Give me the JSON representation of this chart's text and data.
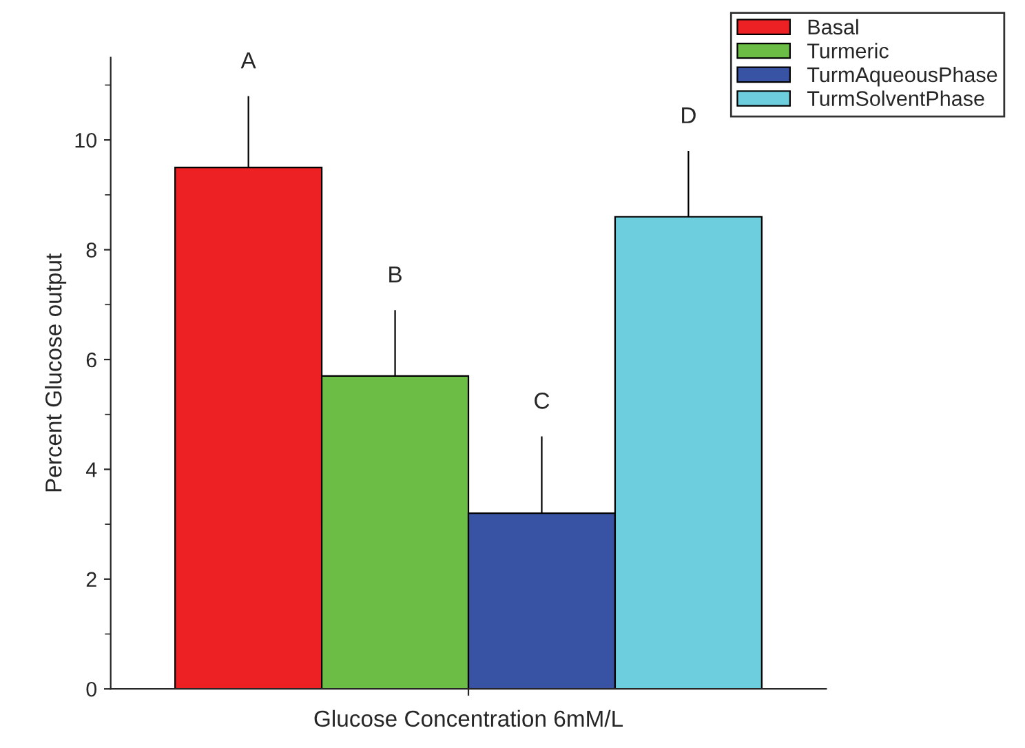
{
  "chart_data": {
    "type": "bar",
    "xlabel": "Glucose Concentration 6mM/L",
    "ylabel": "Percent Glucose output",
    "categories": [
      null
    ],
    "series": [
      {
        "name": "Basal",
        "color": "#ed2024",
        "values": [
          9.5
        ],
        "errors": [
          [
            9.5,
            10.8
          ]
        ]
      },
      {
        "name": "Turmeric",
        "color": "#6cbd45",
        "values": [
          5.7
        ],
        "errors": [
          [
            5.7,
            6.9
          ]
        ]
      },
      {
        "name": "TurmAqueousPhase",
        "color": "#3852a4",
        "values": [
          3.2
        ],
        "errors": [
          [
            3.2,
            4.6
          ]
        ]
      },
      {
        "name": "TurmSolventPhase",
        "color": "#6dcedd",
        "values": [
          8.6
        ],
        "errors": [
          [
            8.6,
            9.8
          ]
        ]
      }
    ],
    "annotations": [
      "A",
      "B",
      "C",
      "D"
    ],
    "ylim": [
      0,
      11.5
    ],
    "yticks": [
      0,
      {
        "value": 1,
        "label": null
      },
      2,
      {
        "value": 3,
        "label": null
      },
      4,
      {
        "value": 5,
        "label": null
      },
      6,
      {
        "value": 7,
        "label": null
      },
      8,
      {
        "value": 9,
        "label": null
      },
      10,
      {
        "value": 11,
        "label": null
      }
    ],
    "grid": false,
    "legend": "top right"
  }
}
